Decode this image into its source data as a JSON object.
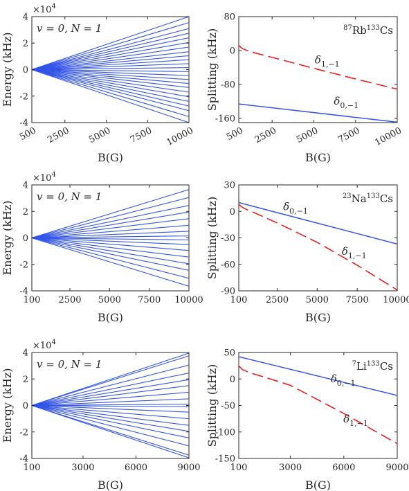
{
  "colors": {
    "blue": "#3355e6",
    "red": "#ee1111",
    "axis": "#262626"
  },
  "chart_data": [
    {
      "id": "rbcs-energy",
      "type": "line",
      "xlabel": "B(G)",
      "ylabel": "Energy (kHz)",
      "exponent": "×10",
      "exponent_power": "4",
      "annotation": "v = 0, N = 1",
      "xlim": [
        500,
        10000
      ],
      "ylim": [
        -40000,
        40000
      ],
      "xticks": [
        500,
        2500,
        5000,
        7500,
        10000
      ],
      "xtick_labels": [
        "500",
        "2500",
        "5000",
        "7500",
        "10000"
      ],
      "yticks": [
        -40000,
        -20000,
        0,
        20000,
        40000
      ],
      "ytick_labels": [
        "-4",
        "-2",
        "0",
        "2",
        "4"
      ],
      "x_start": 500,
      "x_end": 10000,
      "fan_start_value": 0,
      "fan_end_values": [
        40000,
        35500,
        31000,
        27500,
        24000,
        20500,
        17000,
        13500,
        10500,
        7500,
        4500,
        1500,
        -1500,
        -4500,
        -7500,
        -10500,
        -13500,
        -17000,
        -20500,
        -24000,
        -27500,
        -31000,
        -35500,
        -40000
      ]
    },
    {
      "id": "rbcs-splitting",
      "type": "line",
      "xlabel": "B(G)",
      "ylabel": "Splitting (kHz)",
      "molecule": {
        "m1": "87",
        "e1": "Rb",
        "m2": "133",
        "e2": "Cs"
      },
      "xlim": [
        500,
        10000
      ],
      "ylim": [
        -170,
        80
      ],
      "xticks": [
        500,
        2500,
        5000,
        7500,
        10000
      ],
      "xtick_labels": [
        "500",
        "2500",
        "5000",
        "7500",
        "10000"
      ],
      "yticks": [
        -160,
        -80,
        0,
        80
      ],
      "ytick_labels": [
        "-160",
        "-80",
        "0",
        "80"
      ],
      "series": [
        {
          "name": "δ0,−1",
          "sym": "δ",
          "sub": "0,−1",
          "style": "solid",
          "x": [
            500,
            10000
          ],
          "y": [
            -126,
            -169
          ]
        },
        {
          "name": "δ1,−1",
          "sym": "δ",
          "sub": "1,−1",
          "style": "dashed",
          "x": [
            500,
            700,
            1000,
            1500,
            2500,
            5000,
            7500,
            10000
          ],
          "y": [
            12,
            5,
            0,
            -6,
            -16,
            -42,
            -67,
            -91
          ]
        }
      ]
    },
    {
      "id": "nacs-energy",
      "type": "line",
      "xlabel": "B(G)",
      "ylabel": "Energy (kHz)",
      "exponent": "×10",
      "exponent_power": "4",
      "annotation": "v = 0, N = 1",
      "xlim": [
        100,
        10000
      ],
      "ylim": [
        -40000,
        40000
      ],
      "xticks": [
        100,
        2500,
        5000,
        7500,
        10000
      ],
      "xtick_labels": [
        "100",
        "2500",
        "5000",
        "7500",
        "10000"
      ],
      "yticks": [
        -40000,
        -20000,
        0,
        20000,
        40000
      ],
      "ytick_labels": [
        "-4",
        "-2",
        "0",
        "2",
        "4"
      ],
      "x_start": 100,
      "x_end": 10000,
      "fan_start_value": 0,
      "fan_end_values": [
        36500,
        30500,
        24500,
        19500,
        14500,
        9500,
        5000,
        1500,
        -1500,
        -5000,
        -9500,
        -14500,
        -19500,
        -24500,
        -30500,
        -36500
      ]
    },
    {
      "id": "nacs-splitting",
      "type": "line",
      "xlabel": "B(G)",
      "ylabel": "Splitting (kHz)",
      "molecule": {
        "m1": "23",
        "e1": "Na",
        "m2": "133",
        "e2": "Cs"
      },
      "xlim": [
        100,
        10000
      ],
      "ylim": [
        -90,
        30
      ],
      "xticks": [
        100,
        2500,
        5000,
        7500,
        10000
      ],
      "xtick_labels": [
        "100",
        "2500",
        "5000",
        "7500",
        "10000"
      ],
      "yticks": [
        -90,
        -60,
        -30,
        0,
        30
      ],
      "ytick_labels": [
        "-90",
        "-60",
        "-30",
        "0",
        "30"
      ],
      "series": [
        {
          "name": "δ0,−1",
          "sym": "δ",
          "sub": "0,−1",
          "style": "solid",
          "x": [
            100,
            10000
          ],
          "y": [
            10,
            -37
          ]
        },
        {
          "name": "δ1,−1",
          "sym": "δ",
          "sub": "1,−1",
          "style": "dashed",
          "x": [
            100,
            300,
            600,
            1000,
            2500,
            5000,
            7500,
            10000
          ],
          "y": [
            8,
            5,
            2,
            -1,
            -13,
            -35,
            -61,
            -89
          ]
        }
      ]
    },
    {
      "id": "lics-energy",
      "type": "line",
      "xlabel": "B(G)",
      "ylabel": "Energy (kHz)",
      "exponent": "×10",
      "exponent_power": "4",
      "annotation": "v = 0, N = 1",
      "xlim": [
        100,
        9000
      ],
      "ylim": [
        -40000,
        40000
      ],
      "xticks": [
        100,
        3000,
        6000,
        9000
      ],
      "xtick_labels": [
        "100",
        "3000",
        "6000",
        "9000"
      ],
      "yticks": [
        -40000,
        -20000,
        0,
        20000,
        40000
      ],
      "ytick_labels": [
        "-4",
        "-2",
        "0",
        "2",
        "4"
      ],
      "x_start": 100,
      "x_end": 9000,
      "fan_start_value": 0,
      "fan_end_values": [
        39500,
        37500,
        30500,
        24500,
        19500,
        15000,
        10000,
        5000,
        1000,
        -1000,
        -5000,
        -10000,
        -15000,
        -19500,
        -24500,
        -30500,
        -37500,
        -39500
      ]
    },
    {
      "id": "lics-splitting",
      "type": "line",
      "xlabel": "B(G)",
      "ylabel": "Splitting (kHz)",
      "molecule": {
        "m1": "7",
        "e1": "Li",
        "m2": "133",
        "e2": "Cs"
      },
      "xlim": [
        100,
        9000
      ],
      "ylim": [
        -150,
        50
      ],
      "xticks": [
        100,
        3000,
        6000,
        9000
      ],
      "xtick_labels": [
        "100",
        "3000",
        "6000",
        "9000"
      ],
      "yticks": [
        -150,
        -100,
        -50,
        0,
        50
      ],
      "ytick_labels": [
        "-150",
        "-100",
        "-50",
        "0",
        "50"
      ],
      "series": [
        {
          "name": "δ0,−1",
          "sym": "δ",
          "sub": "0,−1",
          "style": "solid",
          "x": [
            100,
            9000
          ],
          "y": [
            42,
            -31
          ]
        },
        {
          "name": "δ1,−1",
          "sym": "δ",
          "sub": "1,−1",
          "style": "dashed",
          "x": [
            100,
            300,
            700,
            1500,
            3000,
            6000,
            9000
          ],
          "y": [
            25,
            18,
            12,
            4,
            -12,
            -65,
            -122
          ]
        }
      ]
    }
  ]
}
